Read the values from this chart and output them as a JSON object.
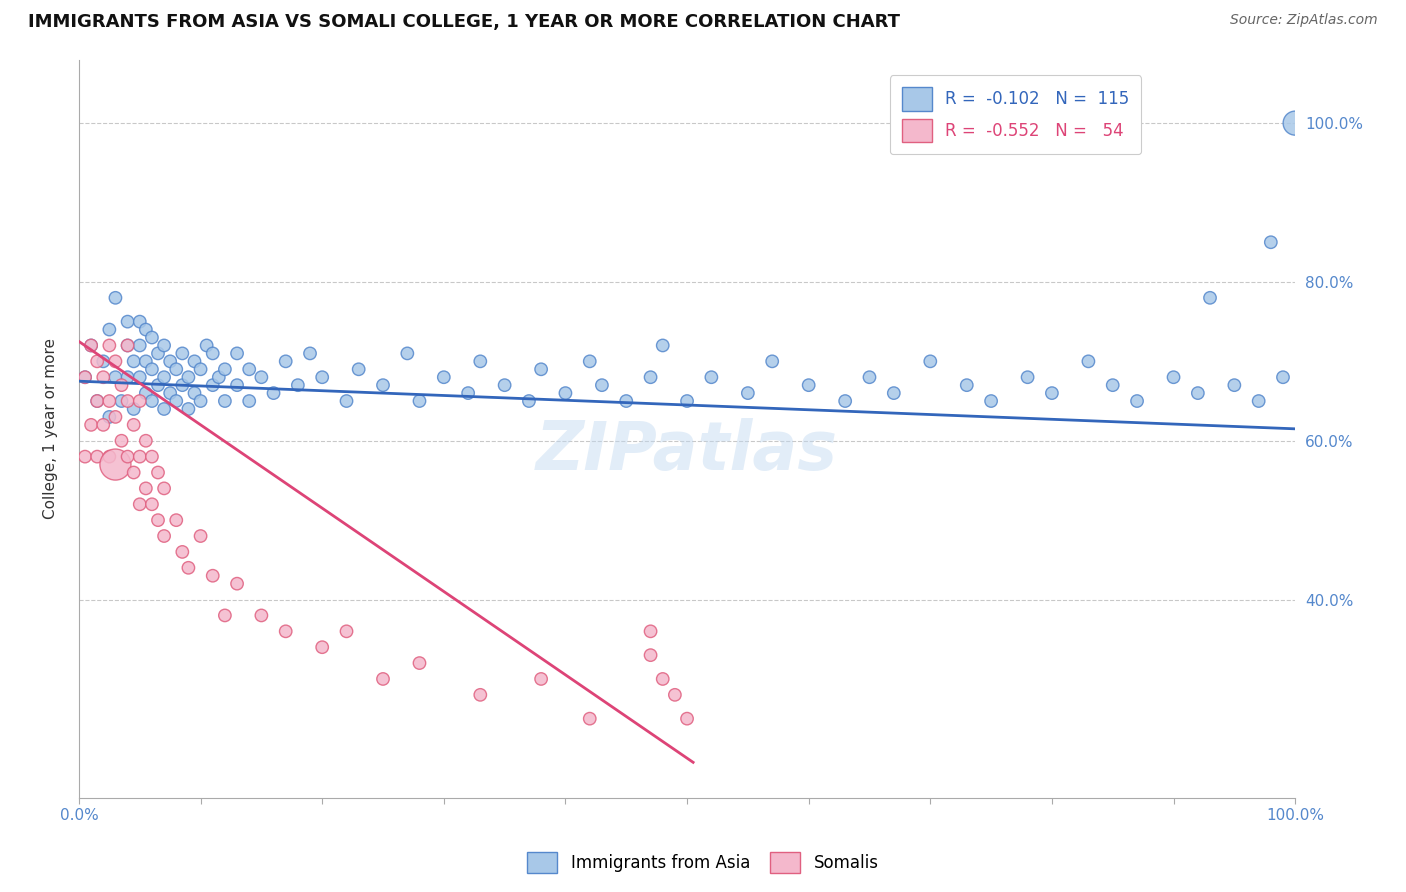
{
  "title": "IMMIGRANTS FROM ASIA VS SOMALI COLLEGE, 1 YEAR OR MORE CORRELATION CHART",
  "source": "Source: ZipAtlas.com",
  "ylabel": "College, 1 year or more",
  "xlim": [
    0.0,
    1.0
  ],
  "ylim": [
    0.15,
    1.08
  ],
  "x_ticks": [
    0.0,
    0.1,
    0.2,
    0.3,
    0.4,
    0.5,
    0.6,
    0.7,
    0.8,
    0.9,
    1.0
  ],
  "x_tick_labels": [
    "0.0%",
    "",
    "",
    "",
    "",
    "",
    "",
    "",
    "",
    "",
    "100.0%"
  ],
  "y_ticks_right": [
    0.4,
    0.6,
    0.8,
    1.0
  ],
  "y_tick_labels_right": [
    "40.0%",
    "60.0%",
    "80.0%",
    "100.0%"
  ],
  "blue_color": "#a8c8e8",
  "pink_color": "#f4b8cc",
  "blue_edge_color": "#5588cc",
  "pink_edge_color": "#e06080",
  "blue_line_color": "#3366bb",
  "pink_line_color": "#dd4477",
  "watermark": "ZIPatlas",
  "blue_line_x0": 0.0,
  "blue_line_x1": 1.0,
  "blue_line_y0": 0.675,
  "blue_line_y1": 0.615,
  "pink_line_x0": 0.0,
  "pink_line_x1": 0.505,
  "pink_line_y0": 0.725,
  "pink_line_y1": 0.195,
  "blue_scatter_x": [
    0.005,
    0.01,
    0.015,
    0.02,
    0.025,
    0.025,
    0.03,
    0.03,
    0.035,
    0.04,
    0.04,
    0.04,
    0.045,
    0.045,
    0.05,
    0.05,
    0.05,
    0.055,
    0.055,
    0.055,
    0.06,
    0.06,
    0.06,
    0.065,
    0.065,
    0.07,
    0.07,
    0.07,
    0.075,
    0.075,
    0.08,
    0.08,
    0.085,
    0.085,
    0.09,
    0.09,
    0.095,
    0.095,
    0.1,
    0.1,
    0.105,
    0.11,
    0.11,
    0.115,
    0.12,
    0.12,
    0.13,
    0.13,
    0.14,
    0.14,
    0.15,
    0.16,
    0.17,
    0.18,
    0.19,
    0.2,
    0.22,
    0.23,
    0.25,
    0.27,
    0.28,
    0.3,
    0.32,
    0.33,
    0.35,
    0.37,
    0.38,
    0.4,
    0.42,
    0.43,
    0.45,
    0.47,
    0.48,
    0.5,
    0.52,
    0.55,
    0.57,
    0.6,
    0.63,
    0.65,
    0.67,
    0.7,
    0.73,
    0.75,
    0.78,
    0.8,
    0.83,
    0.85,
    0.87,
    0.9,
    0.92,
    0.93,
    0.95,
    0.97,
    0.98,
    0.99,
    1.0
  ],
  "blue_scatter_y": [
    0.68,
    0.72,
    0.65,
    0.7,
    0.63,
    0.74,
    0.68,
    0.78,
    0.65,
    0.72,
    0.68,
    0.75,
    0.7,
    0.64,
    0.72,
    0.68,
    0.75,
    0.66,
    0.7,
    0.74,
    0.65,
    0.69,
    0.73,
    0.67,
    0.71,
    0.64,
    0.68,
    0.72,
    0.66,
    0.7,
    0.65,
    0.69,
    0.67,
    0.71,
    0.64,
    0.68,
    0.66,
    0.7,
    0.65,
    0.69,
    0.72,
    0.67,
    0.71,
    0.68,
    0.65,
    0.69,
    0.67,
    0.71,
    0.65,
    0.69,
    0.68,
    0.66,
    0.7,
    0.67,
    0.71,
    0.68,
    0.65,
    0.69,
    0.67,
    0.71,
    0.65,
    0.68,
    0.66,
    0.7,
    0.67,
    0.65,
    0.69,
    0.66,
    0.7,
    0.67,
    0.65,
    0.68,
    0.72,
    0.65,
    0.68,
    0.66,
    0.7,
    0.67,
    0.65,
    0.68,
    0.66,
    0.7,
    0.67,
    0.65,
    0.68,
    0.66,
    0.7,
    0.67,
    0.65,
    0.68,
    0.66,
    0.78,
    0.67,
    0.65,
    0.85,
    0.68,
    1.0
  ],
  "blue_scatter_s": [
    80,
    80,
    80,
    80,
    80,
    80,
    80,
    80,
    80,
    80,
    80,
    80,
    80,
    80,
    80,
    80,
    80,
    80,
    80,
    80,
    80,
    80,
    80,
    80,
    80,
    80,
    80,
    80,
    80,
    80,
    80,
    80,
    80,
    80,
    80,
    80,
    80,
    80,
    80,
    80,
    80,
    80,
    80,
    80,
    80,
    80,
    80,
    80,
    80,
    80,
    80,
    80,
    80,
    80,
    80,
    80,
    80,
    80,
    80,
    80,
    80,
    80,
    80,
    80,
    80,
    80,
    80,
    80,
    80,
    80,
    80,
    80,
    80,
    80,
    80,
    80,
    80,
    80,
    80,
    80,
    80,
    80,
    80,
    80,
    80,
    80,
    80,
    80,
    80,
    80,
    80,
    80,
    80,
    80,
    80,
    80,
    300
  ],
  "pink_scatter_x": [
    0.005,
    0.005,
    0.01,
    0.01,
    0.015,
    0.015,
    0.015,
    0.02,
    0.02,
    0.025,
    0.025,
    0.025,
    0.03,
    0.03,
    0.03,
    0.035,
    0.035,
    0.04,
    0.04,
    0.04,
    0.045,
    0.045,
    0.05,
    0.05,
    0.05,
    0.055,
    0.055,
    0.06,
    0.06,
    0.065,
    0.065,
    0.07,
    0.07,
    0.08,
    0.085,
    0.09,
    0.1,
    0.11,
    0.12,
    0.13,
    0.15,
    0.17,
    0.2,
    0.22,
    0.25,
    0.28,
    0.33,
    0.38,
    0.42,
    0.47,
    0.47,
    0.48,
    0.49,
    0.5
  ],
  "pink_scatter_y": [
    0.68,
    0.58,
    0.72,
    0.62,
    0.7,
    0.65,
    0.58,
    0.68,
    0.62,
    0.72,
    0.65,
    0.58,
    0.7,
    0.63,
    0.57,
    0.67,
    0.6,
    0.65,
    0.58,
    0.72,
    0.62,
    0.56,
    0.65,
    0.58,
    0.52,
    0.6,
    0.54,
    0.58,
    0.52,
    0.56,
    0.5,
    0.54,
    0.48,
    0.5,
    0.46,
    0.44,
    0.48,
    0.43,
    0.38,
    0.42,
    0.38,
    0.36,
    0.34,
    0.36,
    0.3,
    0.32,
    0.28,
    0.3,
    0.25,
    0.36,
    0.33,
    0.3,
    0.28,
    0.25
  ],
  "pink_scatter_s": [
    80,
    80,
    80,
    80,
    80,
    80,
    80,
    80,
    80,
    80,
    80,
    80,
    80,
    80,
    500,
    80,
    80,
    80,
    80,
    80,
    80,
    80,
    80,
    80,
    80,
    80,
    80,
    80,
    80,
    80,
    80,
    80,
    80,
    80,
    80,
    80,
    80,
    80,
    80,
    80,
    80,
    80,
    80,
    80,
    80,
    80,
    80,
    80,
    80,
    80,
    80,
    80,
    80,
    80
  ]
}
